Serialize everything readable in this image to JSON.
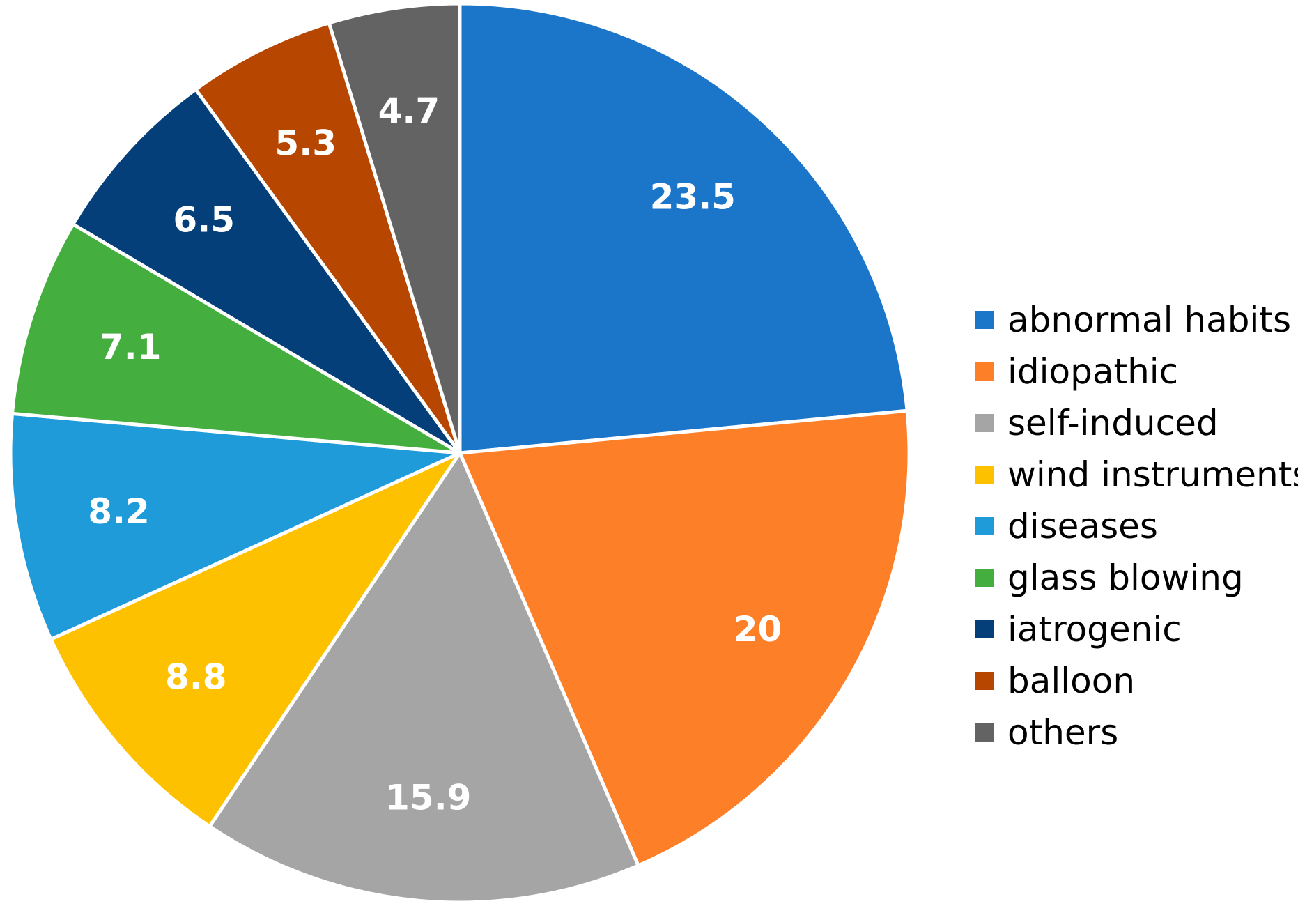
{
  "chart_data": {
    "type": "pie",
    "title": "",
    "start_angle_deg": 0,
    "direction": "clockwise",
    "legend_position": "right",
    "slices": [
      {
        "label": "abnormal habits",
        "value": 23.5,
        "display": "23.5",
        "color": "#1B75C9"
      },
      {
        "label": "idiopathic",
        "value": 20,
        "display": "20",
        "color": "#FD7F27"
      },
      {
        "label": "self-induced",
        "value": 15.9,
        "display": "15.9",
        "color": "#A5A5A5"
      },
      {
        "label": "wind instruments",
        "value": 8.8,
        "display": "8.8",
        "color": "#FDC100"
      },
      {
        "label": "diseases",
        "value": 8.2,
        "display": "8.2",
        "color": "#1E9BD8"
      },
      {
        "label": "glass blowing",
        "value": 7.1,
        "display": "7.1",
        "color": "#44AE3E"
      },
      {
        "label": "iatrogenic",
        "value": 6.5,
        "display": "6.5",
        "color": "#043F7A"
      },
      {
        "label": "balloon",
        "value": 5.3,
        "display": "5.3",
        "color": "#B64600"
      },
      {
        "label": "others",
        "value": 4.7,
        "display": "4.7",
        "color": "#636363"
      }
    ]
  }
}
